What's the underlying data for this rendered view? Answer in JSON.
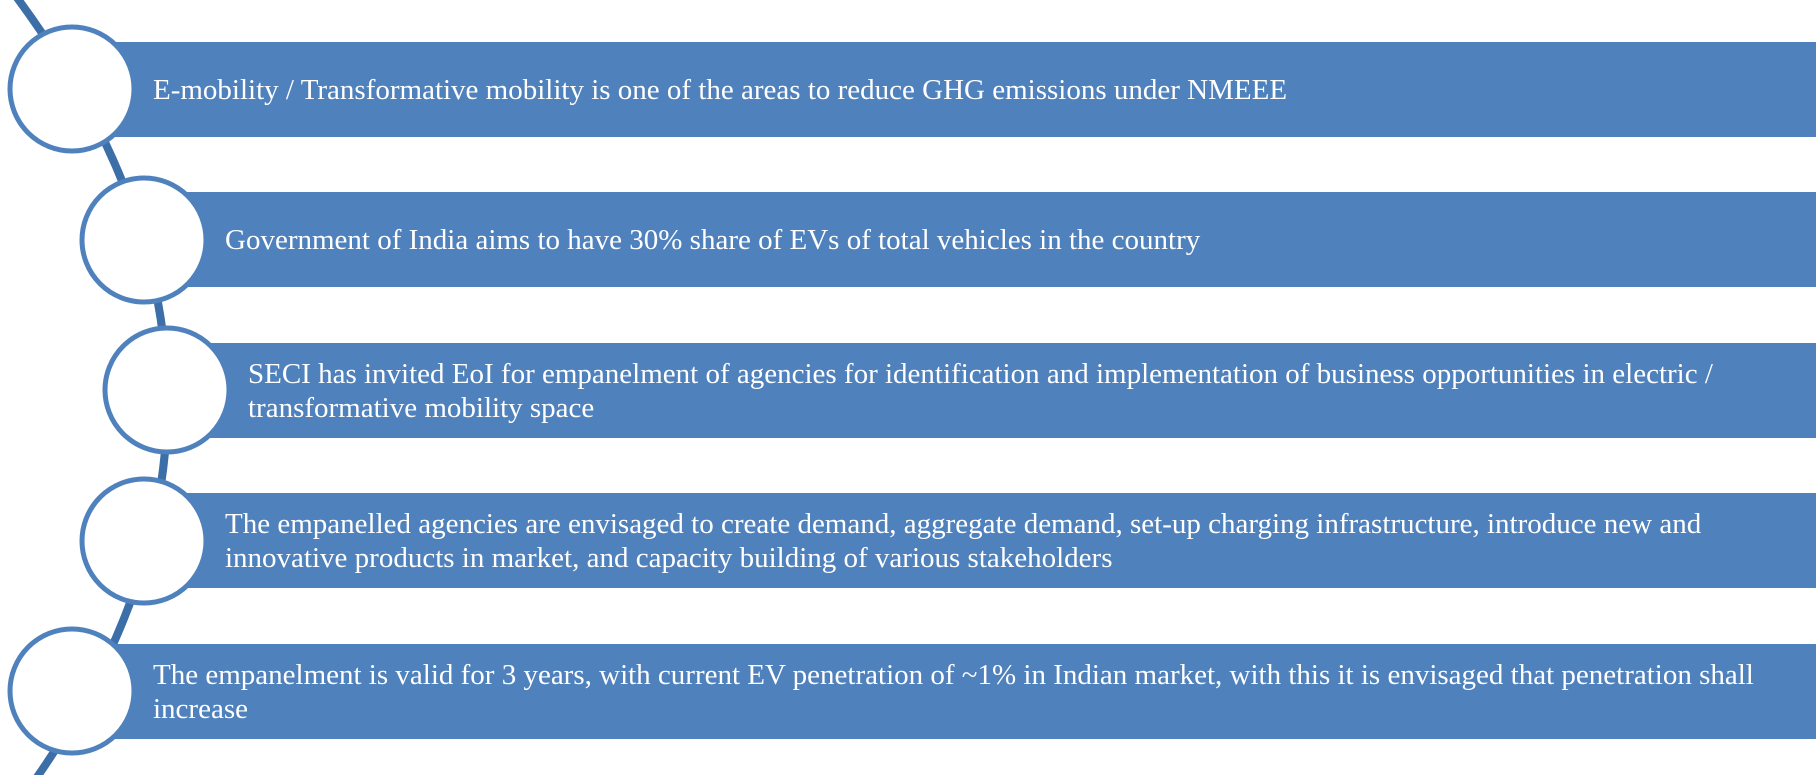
{
  "items": [
    "E-mobility / Transformative mobility is one of the areas to reduce GHG emissions under NMEEE",
    "Government of India aims to have 30% share of EVs of total vehicles in the country",
    "SECI has invited EoI for empanelment of agencies for identification and implementation of business opportunities in electric / transformative mobility space",
    "The empanelled agencies are envisaged to create demand, aggregate demand, set-up charging infrastructure, introduce new and innovative products in market, and capacity building of various stakeholders",
    "The empanelment is valid for 3 years, with current EV penetration of ~1% in Indian market, with this it is envisaged that penetration shall increase"
  ]
}
